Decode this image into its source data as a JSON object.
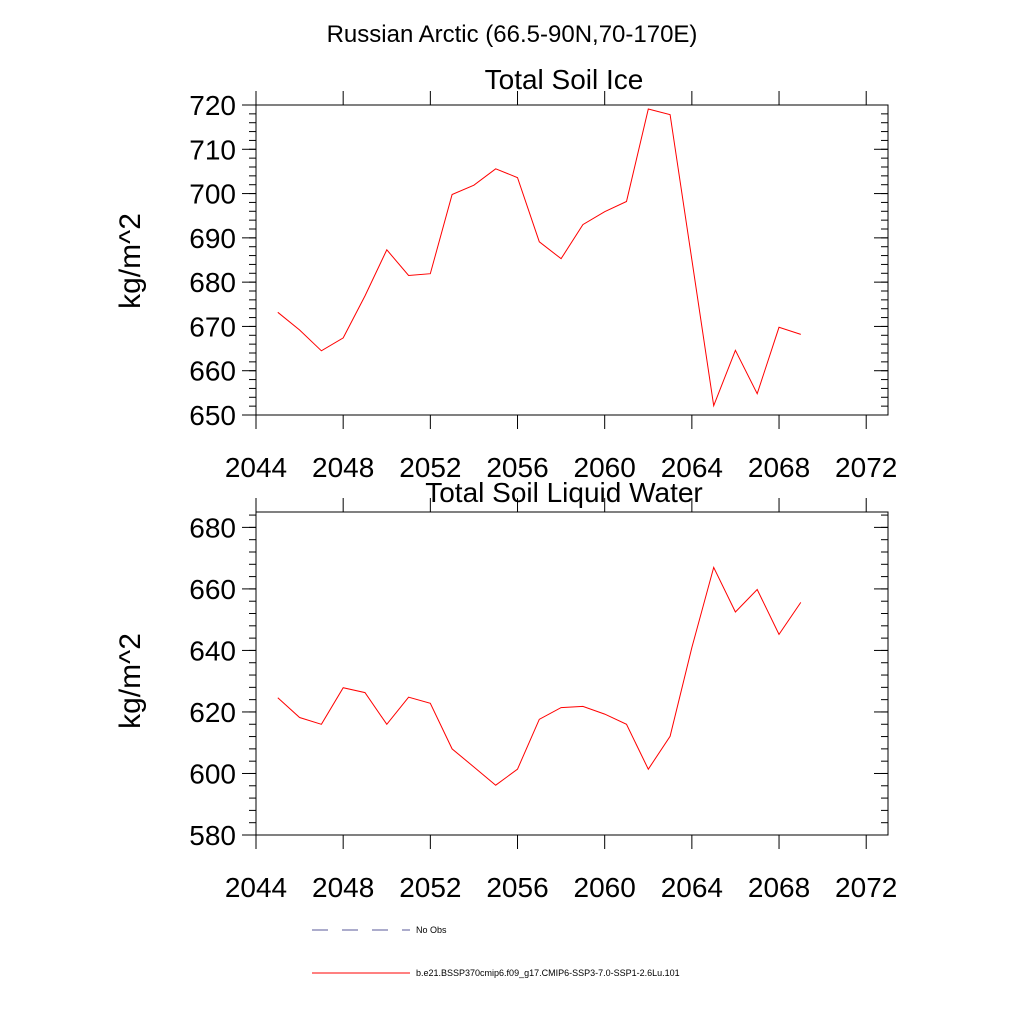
{
  "page_title": "Russian Arctic (66.5-90N,70-170E)",
  "chart_data": [
    {
      "type": "line",
      "title": "Total Soil Ice",
      "xlabel": "",
      "ylabel": "kg/m^2",
      "xlim": [
        2044,
        2073
      ],
      "ylim": [
        650,
        720
      ],
      "x_ticks": [
        2044,
        2048,
        2052,
        2056,
        2060,
        2064,
        2068,
        2072
      ],
      "y_ticks": [
        650,
        660,
        670,
        680,
        690,
        700,
        710,
        720
      ],
      "grid": false,
      "series": [
        {
          "name": "b.e21.BSSP370cmip6.f09_g17.CMIP6-SSP3-7.0-SSP1-2.6Lu.101",
          "color": "#ff0000",
          "x": [
            2045,
            2046,
            2047,
            2048,
            2049,
            2050,
            2051,
            2052,
            2053,
            2054,
            2055,
            2056,
            2057,
            2058,
            2059,
            2060,
            2061,
            2062,
            2063,
            2064,
            2065,
            2066,
            2067,
            2068,
            2069
          ],
          "y": [
            673.2,
            669.2,
            664.5,
            667.4,
            676.9,
            687.3,
            681.5,
            681.9,
            699.8,
            701.9,
            705.6,
            703.6,
            689.1,
            685.3,
            693.0,
            695.9,
            698.2,
            719.1,
            717.8,
            685.0,
            652.1,
            664.6,
            654.8,
            669.8,
            668.2
          ]
        }
      ]
    },
    {
      "type": "line",
      "title": "Total Soil Liquid Water",
      "xlabel": "",
      "ylabel": "kg/m^2",
      "xlim": [
        2044,
        2073
      ],
      "ylim": [
        580,
        685
      ],
      "x_ticks": [
        2044,
        2048,
        2052,
        2056,
        2060,
        2064,
        2068,
        2072
      ],
      "y_ticks": [
        580,
        600,
        620,
        640,
        660,
        680
      ],
      "grid": false,
      "series": [
        {
          "name": "b.e21.BSSP370cmip6.f09_g17.CMIP6-SSP3-7.0-SSP1-2.6Lu.101",
          "color": "#ff0000",
          "x": [
            2045,
            2046,
            2047,
            2048,
            2049,
            2050,
            2051,
            2052,
            2053,
            2054,
            2055,
            2056,
            2057,
            2058,
            2059,
            2060,
            2061,
            2062,
            2063,
            2064,
            2065,
            2066,
            2067,
            2068,
            2069
          ],
          "y": [
            624.6,
            618.2,
            616.0,
            627.9,
            626.3,
            616.0,
            624.8,
            622.8,
            608.0,
            602.1,
            596.2,
            601.4,
            617.6,
            621.4,
            621.8,
            619.3,
            616.0,
            601.4,
            612.1,
            641.0,
            667.0,
            652.5,
            659.8,
            645.2,
            655.6
          ]
        }
      ]
    }
  ],
  "legend": {
    "placement": "bottom",
    "entries": [
      {
        "label": "No Obs",
        "color": "#5a5a9a",
        "style": "dashed"
      },
      {
        "label": "b.e21.BSSP370cmip6.f09_g17.CMIP6-SSP3-7.0-SSP1-2.6Lu.101",
        "color": "#ff0000",
        "style": "solid"
      }
    ]
  }
}
